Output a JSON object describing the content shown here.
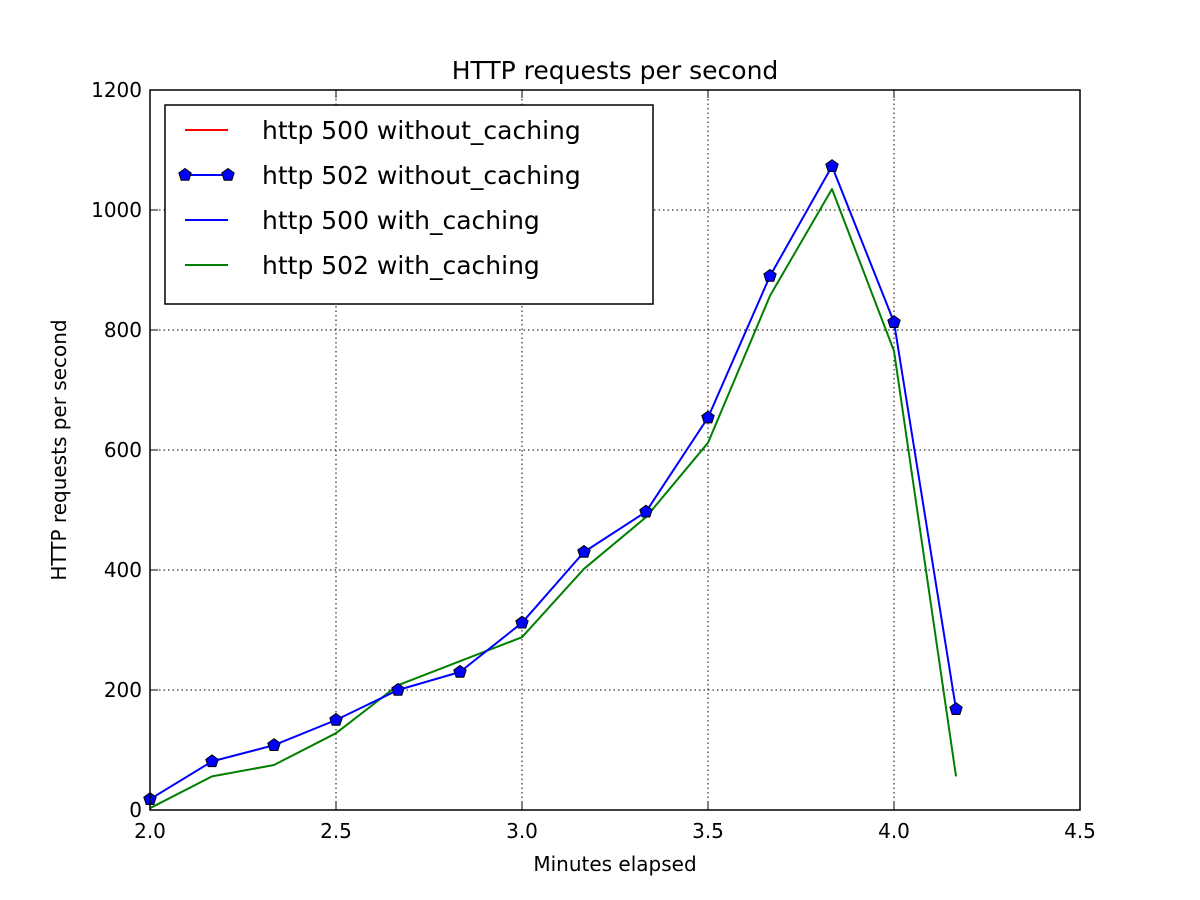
{
  "chart_data": {
    "type": "line",
    "title": "HTTP requests per second",
    "xlabel": "Minutes elapsed",
    "ylabel": "HTTP requests per second",
    "xlim": [
      2.0,
      4.5
    ],
    "ylim": [
      0,
      1200
    ],
    "xticks": [
      "2.0",
      "2.5",
      "3.0",
      "3.5",
      "4.0",
      "4.5"
    ],
    "yticks": [
      "0",
      "200",
      "400",
      "600",
      "800",
      "1000",
      "1200"
    ],
    "grid": true,
    "legend_position": "upper-left",
    "series": [
      {
        "name": "http 500 without_caching",
        "color": "#ff0000",
        "marker": "none",
        "x": [],
        "values": []
      },
      {
        "name": "http 502 without_caching",
        "color": "#0000ff",
        "marker": "pentagon",
        "x": [
          2.0,
          2.1667,
          2.3333,
          2.5,
          2.6667,
          2.8333,
          3.0,
          3.1667,
          3.3333,
          3.5,
          3.6667,
          3.8333,
          4.0,
          4.1667
        ],
        "values": [
          18,
          81,
          108,
          150,
          200,
          230,
          312,
          430,
          497,
          654,
          890,
          1073,
          813,
          168
        ]
      },
      {
        "name": "http 500 with_caching",
        "color": "#0000ff",
        "marker": "none",
        "x": [],
        "values": []
      },
      {
        "name": "http 502 with_caching",
        "color": "#008000",
        "marker": "none",
        "x": [
          2.0,
          2.1667,
          2.3333,
          2.5,
          2.6667,
          2.8333,
          3.0,
          3.1667,
          3.3333,
          3.5,
          3.6667,
          3.8333,
          4.0,
          4.1667
        ],
        "values": [
          3,
          56,
          75,
          128,
          208,
          248,
          288,
          402,
          488,
          612,
          857,
          1035,
          765,
          56
        ]
      }
    ]
  }
}
